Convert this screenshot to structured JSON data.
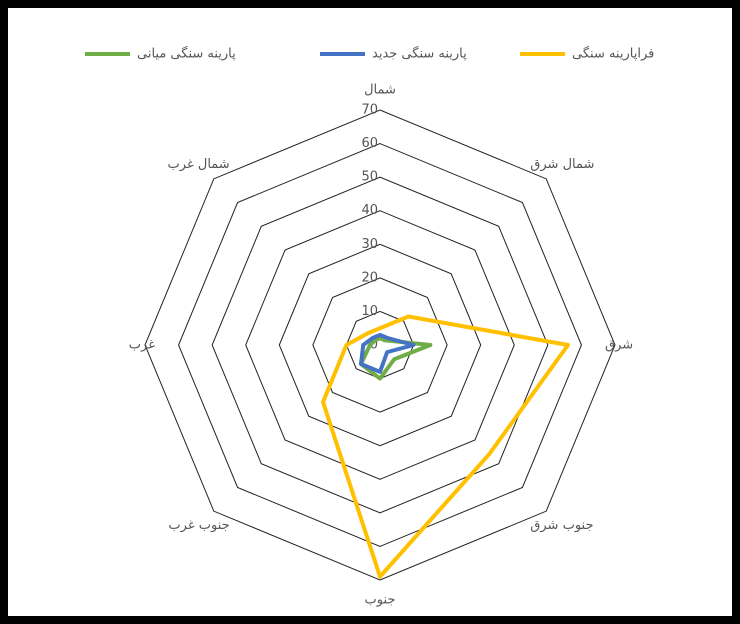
{
  "chart_data": {
    "type": "radar",
    "categories": [
      "شمال",
      "شمال شرق",
      "شرق",
      "جنوب شرق",
      "جنوب",
      "جنوب غرب",
      "غرب",
      "شمال غرب"
    ],
    "rlim": [
      0,
      70
    ],
    "rticks": [
      0,
      10,
      20,
      30,
      40,
      50,
      60,
      70
    ],
    "grid": true,
    "series": [
      {
        "name": "پارینه سنگی میانی",
        "color": "#70ad47",
        "values": [
          2,
          2,
          15,
          6,
          10,
          8,
          3,
          2
        ]
      },
      {
        "name": "پارینه سنگی جدید",
        "color": "#4472c4",
        "values": [
          3,
          3,
          10,
          3,
          8,
          8,
          5,
          3
        ]
      },
      {
        "name": "فراپارینه سنگی",
        "color": "#ffc000",
        "values": [
          5,
          12,
          56,
          46,
          69,
          24,
          10,
          5
        ]
      }
    ]
  }
}
